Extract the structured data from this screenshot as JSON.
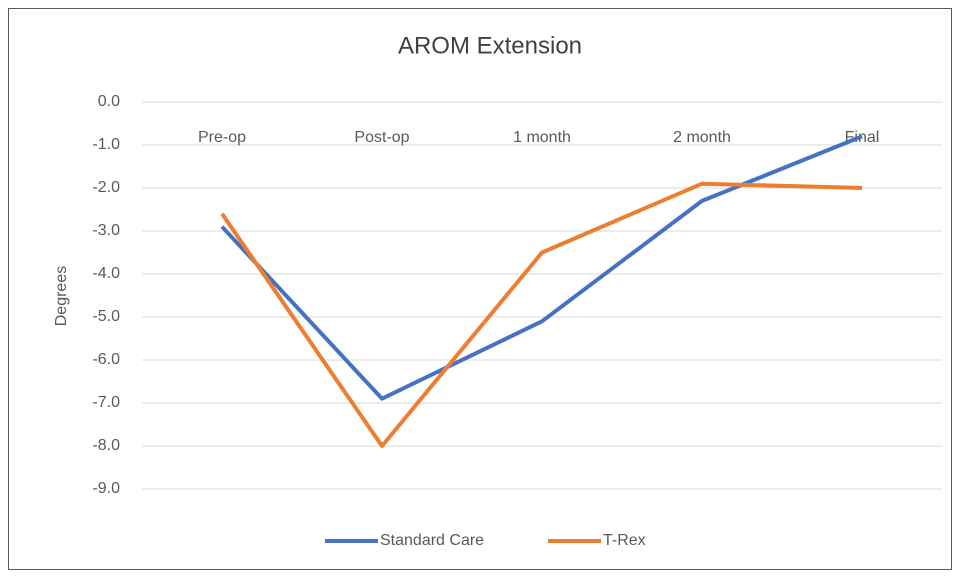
{
  "chart_data": {
    "type": "line",
    "title": "AROM Extension",
    "y_label": "Degrees",
    "categories": [
      "Pre-op",
      "Post-op",
      "1 month",
      "2 month",
      "Final"
    ],
    "series": [
      {
        "name": "Standard Care",
        "color": "#4472c4",
        "values": [
          -2.9,
          -6.9,
          -5.1,
          -2.3,
          -0.8
        ]
      },
      {
        "name": "T-Rex",
        "color": "#ed7d31",
        "values": [
          -2.6,
          -8.0,
          -3.5,
          -1.9,
          -2.0
        ]
      }
    ],
    "ylim": [
      -9,
      0
    ],
    "yticks": [
      {
        "value": 0,
        "label": "0.0"
      },
      {
        "value": -1,
        "label": "-1.0"
      },
      {
        "value": -2,
        "label": "-2.0"
      },
      {
        "value": -3,
        "label": "-3.0"
      },
      {
        "value": -4,
        "label": "-4.0"
      },
      {
        "value": -5,
        "label": "-5.0"
      },
      {
        "value": -6,
        "label": "-6.0"
      },
      {
        "value": -7,
        "label": "-7.0"
      },
      {
        "value": -8,
        "label": "-8.0"
      },
      {
        "value": -9,
        "label": "-9.0"
      }
    ],
    "grid": true,
    "legend": "bottom"
  }
}
